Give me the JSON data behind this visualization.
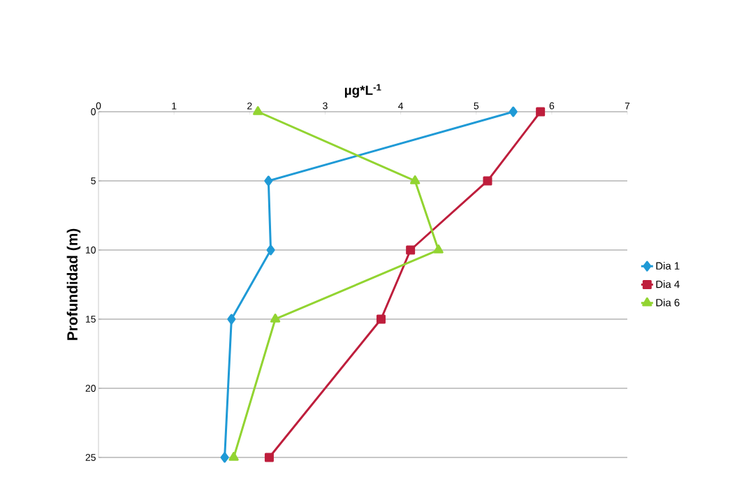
{
  "chart_data": {
    "type": "line",
    "xlabel": "µg*L$^{-1}$",
    "ylabel": "Profundidad (m)",
    "xlim": [
      0,
      7
    ],
    "xticks": [
      0,
      1,
      2,
      3,
      4,
      5,
      6,
      7
    ],
    "ylim": [
      25,
      0
    ],
    "yticks": [
      0,
      5,
      10,
      15,
      20,
      25
    ],
    "grid": "y",
    "legend": "right",
    "series": [
      {
        "name": "Dia 1",
        "color": "#1f9ad6",
        "marker": "diamond",
        "x": [
          5.49,
          2.25,
          2.28,
          1.76,
          1.67
        ],
        "values": [
          0,
          5,
          10,
          15,
          25
        ]
      },
      {
        "name": "Dia 4",
        "color": "#be1e3c",
        "marker": "square",
        "x": [
          5.85,
          5.15,
          4.13,
          3.74,
          2.26
        ],
        "values": [
          0,
          5,
          10,
          15,
          25
        ]
      },
      {
        "name": "Dia 6",
        "color": "#92d431",
        "marker": "triangle",
        "x": [
          2.11,
          4.19,
          4.5,
          2.34,
          1.79
        ],
        "values": [
          0,
          5,
          10,
          15,
          25
        ]
      }
    ]
  }
}
